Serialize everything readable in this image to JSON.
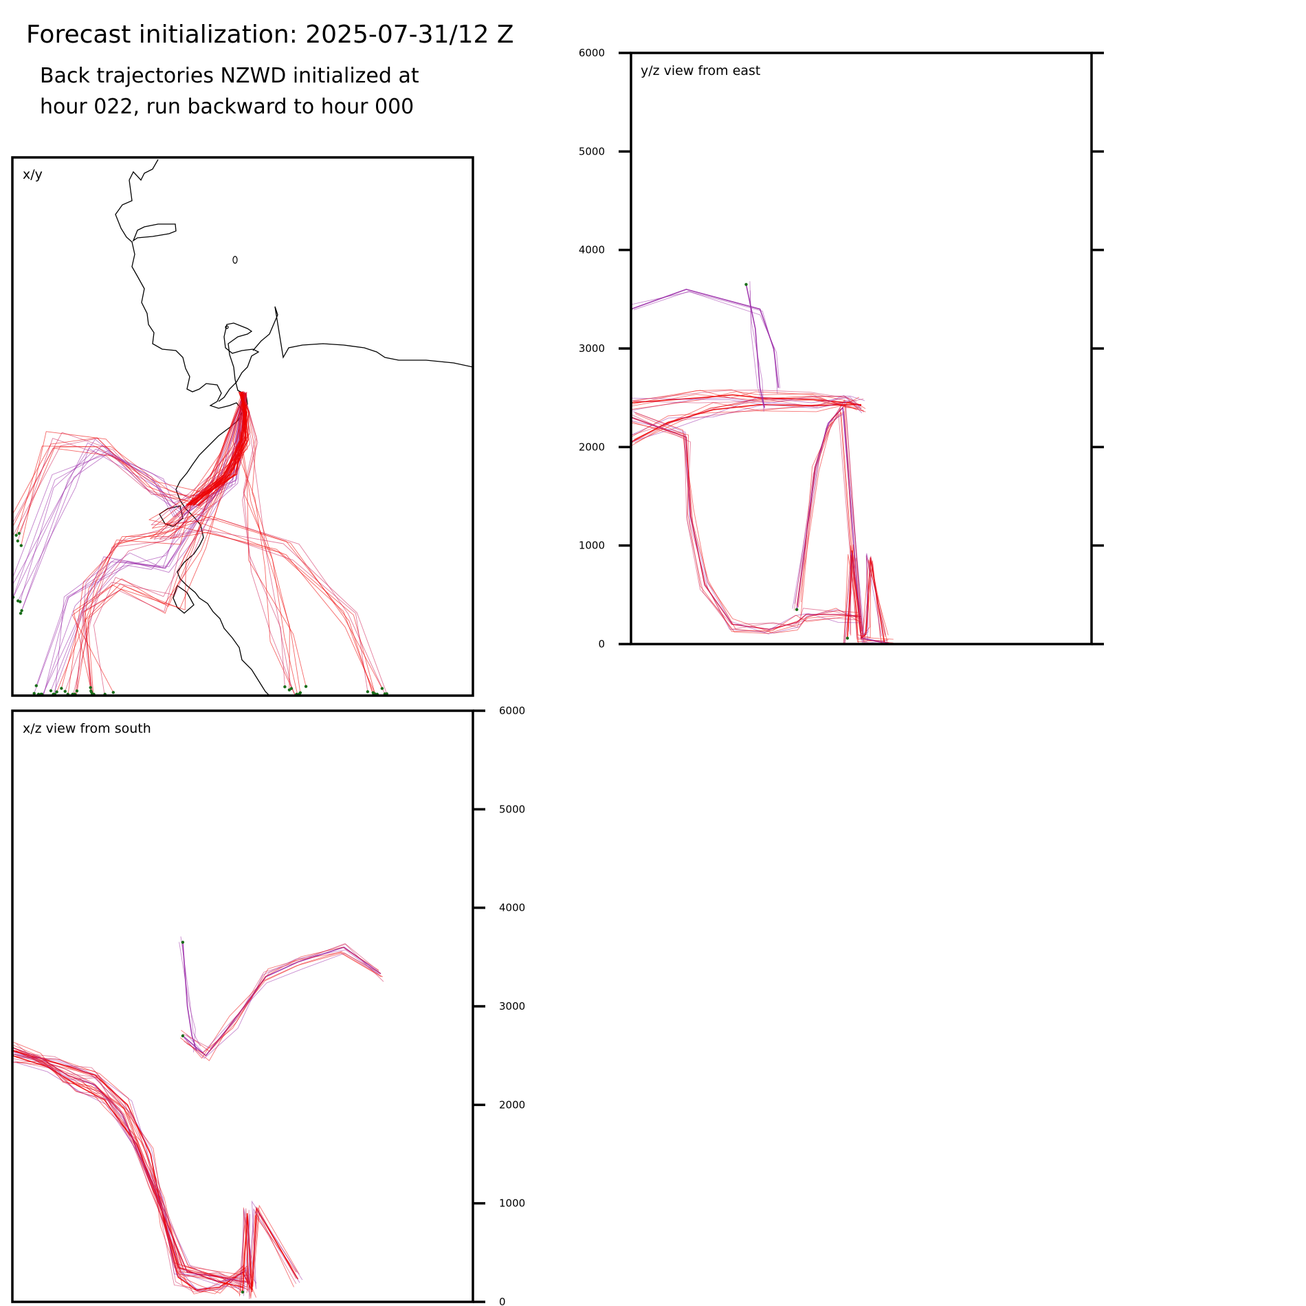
{
  "title": "Forecast initialization: 2025-07-31/12 Z",
  "subtitle": "Back trajectories NZWD initialized at\nhour 022, run backward to hour 000",
  "colors": {
    "trajectory_main": "#ee0000",
    "trajectory_mid": "#d0245a",
    "trajectory_upper": "#9a2aa8",
    "endpoint": "#1a6e1a",
    "coastline": "#000000",
    "axes": "#000000"
  },
  "chart_data": [
    {
      "type": "map",
      "panel": "x/y",
      "label": "x/y",
      "content": "coastline with back-trajectory lines converging on the initialization point, endpoints marked"
    },
    {
      "type": "line",
      "panel": "y/z",
      "label": "y/z view from east",
      "ylim": [
        0,
        6000
      ],
      "yticks": [
        0,
        1000,
        2000,
        3000,
        4000,
        5000,
        6000
      ],
      "series": [
        {
          "x": [
            0.0,
            0.15,
            0.22,
            0.28,
            0.4,
            0.47,
            0.5
          ],
          "y": [
            2450,
            2500,
            2530,
            2500,
            2480,
            2450,
            2420
          ]
        },
        {
          "x": [
            0.0,
            0.08,
            0.18,
            0.28,
            0.4,
            0.47,
            0.5
          ],
          "y": [
            2050,
            2250,
            2380,
            2430,
            2420,
            2430,
            2430
          ]
        },
        {
          "x": [
            0.0,
            0.12,
            0.13,
            0.16,
            0.22,
            0.3,
            0.36,
            0.38,
            0.45,
            0.5
          ],
          "y": [
            2300,
            2100,
            1300,
            600,
            200,
            150,
            220,
            300,
            300,
            280
          ]
        },
        {
          "x": [
            0.36,
            0.4,
            0.43,
            0.46,
            0.5,
            0.56
          ],
          "y": [
            350,
            1800,
            2250,
            2400,
            60,
            10
          ]
        },
        {
          "x": [
            0.47,
            0.48,
            0.5,
            0.51,
            0.52,
            0.55
          ],
          "y": [
            60,
            950,
            60,
            100,
            880,
            20
          ]
        },
        {
          "x": [
            0.0,
            0.12,
            0.28,
            0.31,
            0.32
          ],
          "y": [
            3400,
            3600,
            3400,
            3000,
            2600
          ]
        },
        {
          "x": [
            0.25,
            0.27,
            0.28,
            0.29
          ],
          "y": [
            3650,
            3200,
            2600,
            2400
          ]
        }
      ]
    },
    {
      "type": "line",
      "panel": "x/z",
      "label": "x/z view from south",
      "ylim": [
        0,
        6000
      ],
      "yticks": [
        0,
        1000,
        2000,
        3000,
        4000,
        5000,
        6000
      ],
      "series": [
        {
          "x": [
            0.0,
            0.1,
            0.18,
            0.25,
            0.3,
            0.33,
            0.36,
            0.4,
            0.45,
            0.5,
            0.52
          ],
          "y": [
            2550,
            2420,
            2300,
            2000,
            1500,
            800,
            250,
            120,
            150,
            300,
            120
          ]
        },
        {
          "x": [
            0.0,
            0.08,
            0.14,
            0.2,
            0.27,
            0.32,
            0.36,
            0.45,
            0.5
          ],
          "y": [
            2500,
            2380,
            2200,
            2050,
            1600,
            1000,
            350,
            200,
            150
          ]
        },
        {
          "x": [
            0.0,
            0.06,
            0.12,
            0.18,
            0.24,
            0.3,
            0.38,
            0.45,
            0.51
          ],
          "y": [
            2580,
            2480,
            2300,
            2200,
            1900,
            1200,
            300,
            250,
            200
          ]
        },
        {
          "x": [
            0.37,
            0.42,
            0.48,
            0.55,
            0.62,
            0.72,
            0.8
          ],
          "y": [
            2700,
            2500,
            2850,
            3300,
            3450,
            3600,
            3330
          ]
        },
        {
          "x": [
            0.37,
            0.38,
            0.39,
            0.4
          ],
          "y": [
            3650,
            3000,
            2700,
            2550
          ]
        },
        {
          "x": [
            0.5,
            0.51,
            0.52,
            0.53,
            0.62
          ],
          "y": [
            100,
            900,
            100,
            950,
            230
          ]
        }
      ]
    }
  ]
}
